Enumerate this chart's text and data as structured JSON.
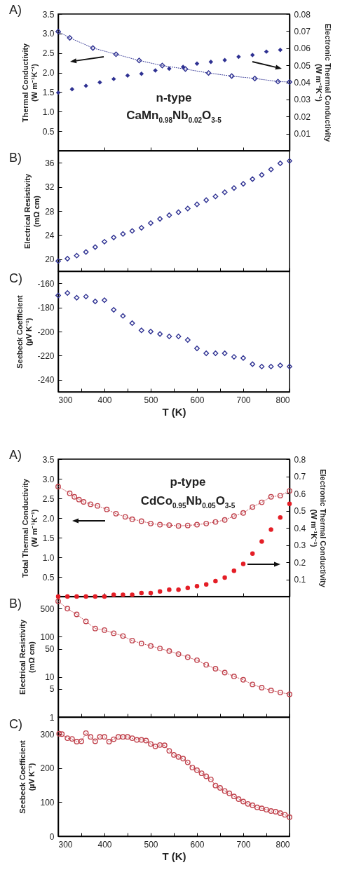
{
  "chart_data": [
    {
      "type": "scatter",
      "title": "A)",
      "ylabel": "Thermal Conductivity\n(W m⁻¹K⁻¹)",
      "y2label": "Electronic Thermal Conductivity\n(W m⁻¹K⁻¹)",
      "annotations": [
        "n-type",
        "CaMn$_{0.98}$Nb$_{0.02}$O$_{3-5}$"
      ],
      "xlim": [
        300,
        800
      ],
      "xticks": [
        300,
        400,
        500,
        600,
        700,
        800
      ],
      "ylim": [
        0,
        3.5
      ],
      "yticks": [
        0.5,
        {
          "value": 1,
          "label": "1.0"
        },
        1.5,
        {
          "value": 2,
          "label": "2.0"
        },
        2.5,
        {
          "value": 3,
          "label": "3.0"
        },
        3.5
      ],
      "y2lim": [
        0,
        0.08
      ],
      "y2ticks": [
        0.01,
        0.02,
        0.03,
        0.04,
        0.05,
        0.06,
        0.07,
        0.08
      ],
      "tick_labels": "y",
      "marker": "diamond",
      "line_style": "dotted",
      "series": [
        {
          "type": "line",
          "color": "#2e3192",
          "x": [
            300,
            325,
            375,
            425,
            475,
            525,
            575,
            625,
            675,
            725,
            775,
            800
          ],
          "values": [
            3.05,
            2.89,
            2.63,
            2.47,
            2.31,
            2.18,
            2.09,
            1.99,
            1.91,
            1.85,
            1.77,
            1.76
          ]
        },
        {
          "axis": "y2",
          "color": "#2e3192",
          "x": [
            300,
            330,
            360,
            390,
            420,
            450,
            480,
            510,
            540,
            570,
            600,
            630,
            660,
            690,
            720,
            750,
            780
          ],
          "values": [
            0.034,
            0.036,
            0.038,
            0.04,
            0.042,
            0.044,
            0.045,
            0.047,
            0.048,
            0.049,
            0.051,
            0.052,
            0.053,
            0.055,
            0.056,
            0.058,
            0.059
          ]
        }
      ]
    },
    {
      "type": "scatter",
      "title": "B)",
      "ylabel": "Electrical Resistivity\n(mΩ cm)",
      "xlim": [
        300,
        800
      ],
      "xticks": [
        300,
        {
          "value": 350,
          "label": null
        },
        400,
        {
          "value": 450,
          "label": null
        },
        500,
        {
          "value": 550,
          "label": null
        },
        600,
        {
          "value": 650,
          "label": null
        },
        700,
        {
          "value": 750,
          "label": null
        },
        800
      ],
      "ylim": [
        18,
        38
      ],
      "yticks": [
        20,
        24,
        28,
        32,
        36
      ],
      "tick_labels": "y",
      "marker": "diamond",
      "color": "#2e3192",
      "x": [
        300,
        320,
        340,
        360,
        380,
        400,
        420,
        440,
        460,
        480,
        500,
        520,
        540,
        560,
        580,
        600,
        620,
        640,
        660,
        680,
        700,
        720,
        740,
        760,
        780,
        800
      ],
      "values": [
        19.7,
        20.1,
        20.6,
        21.2,
        22.0,
        22.9,
        23.6,
        24.2,
        24.7,
        25.2,
        26.0,
        26.7,
        27.3,
        27.8,
        28.4,
        29.1,
        29.8,
        30.4,
        31.1,
        31.8,
        32.5,
        33.3,
        34.0,
        34.9,
        35.9,
        36.3
      ]
    },
    {
      "type": "scatter",
      "title": "C)",
      "ylabel": "Seebeck Coefficient\n(µV K⁻¹)",
      "xlabel": "T (K)",
      "xlim": [
        300,
        800
      ],
      "xticks": [
        300,
        {
          "value": 350,
          "label": null
        },
        400,
        {
          "value": 450,
          "label": null
        },
        500,
        {
          "value": 550,
          "label": null
        },
        600,
        {
          "value": 650,
          "label": null
        },
        700,
        {
          "value": 750,
          "label": null
        },
        800
      ],
      "ylim": [
        -250,
        -150
      ],
      "yticks": [
        -240,
        -220,
        -200,
        -180,
        -160
      ],
      "marker": "diamond",
      "color": "#2e3192",
      "x": [
        300,
        320,
        340,
        360,
        380,
        400,
        420,
        440,
        460,
        480,
        500,
        520,
        540,
        560,
        580,
        600,
        620,
        640,
        660,
        680,
        700,
        720,
        740,
        760,
        780,
        800
      ],
      "values": [
        -170,
        -168,
        -172,
        -171,
        -175,
        -174,
        -182,
        -187,
        -193,
        -199,
        -200,
        -202,
        -204,
        -204,
        -207,
        -214,
        -218,
        -218,
        -218,
        -221,
        -222,
        -227,
        -229,
        -229,
        -228,
        -229
      ]
    },
    {
      "type": "scatter",
      "title": "A)",
      "ylabel": "Total Thermal Conductivity\n(W m⁻¹K⁻¹)",
      "y2label": "Electronic Thermal Conductivity\n(W m⁻¹K⁻¹)",
      "annotations": [
        "p-type",
        "CdCo$_{0.95}$Nb$_{0.05}$O$_{3-5}$"
      ],
      "xlim": [
        300,
        800
      ],
      "xticks": [
        300,
        400,
        500,
        600,
        700,
        800
      ],
      "ylim": [
        0,
        3.5
      ],
      "yticks": [
        0.5,
        {
          "value": 1,
          "label": "1.0"
        },
        1.5,
        {
          "value": 2,
          "label": "2.0"
        },
        2.5,
        {
          "value": 3,
          "label": "3.0"
        },
        3.5
      ],
      "y2lim": [
        0,
        0.8
      ],
      "y2ticks": [
        0.1,
        0.2,
        0.3,
        0.4,
        0.5,
        0.6,
        0.7,
        0.8
      ],
      "tick_labels": "y",
      "marker": "circle",
      "line_style": "dotted",
      "series": [
        {
          "type": "line",
          "color": "#c1444e",
          "x": [
            300,
            325,
            335,
            345,
            355,
            370,
            385,
            405,
            425,
            445,
            460,
            480,
            500,
            520,
            540,
            560,
            580,
            600,
            620,
            640,
            660,
            680,
            700,
            720,
            740,
            760,
            780,
            800
          ],
          "values": [
            2.8,
            2.63,
            2.54,
            2.47,
            2.41,
            2.35,
            2.31,
            2.22,
            2.11,
            2.03,
            1.97,
            1.92,
            1.86,
            1.83,
            1.82,
            1.8,
            1.81,
            1.83,
            1.86,
            1.9,
            1.95,
            2.05,
            2.13,
            2.28,
            2.4,
            2.54,
            2.57,
            2.69
          ]
        },
        {
          "axis": "y2",
          "color": "#e41e26",
          "x": [
            300,
            320,
            340,
            360,
            380,
            400,
            420,
            440,
            460,
            480,
            500,
            520,
            540,
            560,
            580,
            600,
            620,
            640,
            660,
            680,
            700,
            720,
            740,
            760,
            780,
            800
          ],
          "values": [
            0,
            0,
            0,
            0,
            0,
            0,
            0.01,
            0.01,
            0.01,
            0.02,
            0.02,
            0.03,
            0.04,
            0.04,
            0.05,
            0.06,
            0.07,
            0.09,
            0.11,
            0.15,
            0.19,
            0.25,
            0.32,
            0.39,
            0.46,
            0.54
          ]
        }
      ]
    },
    {
      "type": "line",
      "title": "B)",
      "ylabel": "Electrical Resistivity\n(mΩ cm)",
      "xlim": [
        300,
        800
      ],
      "xticks": [
        300,
        {
          "value": 350,
          "label": null
        },
        400,
        {
          "value": 450,
          "label": null
        },
        500,
        {
          "value": 550,
          "label": null
        },
        600,
        {
          "value": 650,
          "label": null
        },
        700,
        {
          "value": 750,
          "label": null
        },
        800
      ],
      "ylim": [
        1,
        1000
      ],
      "yticks": [
        1,
        5,
        10,
        50,
        100,
        500
      ],
      "log": "y",
      "tick_labels": "y",
      "marker": "circle",
      "line_style": "dotted",
      "color": "#c1444e",
      "x": [
        300,
        320,
        340,
        360,
        380,
        400,
        420,
        440,
        460,
        480,
        500,
        520,
        540,
        560,
        580,
        600,
        620,
        640,
        660,
        680,
        700,
        720,
        740,
        760,
        780,
        800
      ],
      "values": [
        760,
        500,
        360,
        240,
        160,
        146,
        122,
        104,
        80,
        68,
        59,
        51,
        44,
        37,
        31,
        26,
        20,
        16,
        12.8,
        10.3,
        8.5,
        6.5,
        5.4,
        4.6,
        4.1,
        3.7
      ]
    },
    {
      "type": "line",
      "title": "C)",
      "ylabel": "Seebeck Coefficient\n(µV K⁻¹)",
      "xlabel": "T (K)",
      "xlim": [
        300,
        800
      ],
      "xticks": [
        300,
        {
          "value": 350,
          "label": null
        },
        400,
        {
          "value": 450,
          "label": null
        },
        500,
        {
          "value": 550,
          "label": null
        },
        600,
        {
          "value": 650,
          "label": null
        },
        700,
        {
          "value": 750,
          "label": null
        },
        800
      ],
      "ylim": [
        0,
        350
      ],
      "yticks": [
        0,
        100,
        200,
        300
      ],
      "marker": "circle",
      "line_style": "dotted",
      "color": "#c1444e",
      "x": [
        302,
        308,
        320,
        330,
        340,
        350,
        360,
        370,
        380,
        390,
        400,
        410,
        420,
        430,
        440,
        450,
        460,
        470,
        480,
        490,
        500,
        510,
        520,
        530,
        540,
        550,
        560,
        570,
        580,
        590,
        600,
        610,
        620,
        630,
        640,
        650,
        660,
        670,
        680,
        690,
        700,
        710,
        720,
        730,
        740,
        750,
        760,
        770,
        780,
        790,
        800
      ],
      "values": [
        301,
        300,
        288,
        286,
        278,
        279,
        303,
        292,
        279,
        292,
        292,
        278,
        285,
        292,
        292,
        292,
        288,
        283,
        283,
        281,
        271,
        264,
        268,
        267,
        251,
        239,
        233,
        228,
        217,
        202,
        194,
        185,
        176,
        167,
        149,
        142,
        133,
        126,
        117,
        109,
        102,
        95,
        91,
        85,
        82,
        78,
        74,
        72,
        68,
        63,
        56
      ]
    }
  ]
}
